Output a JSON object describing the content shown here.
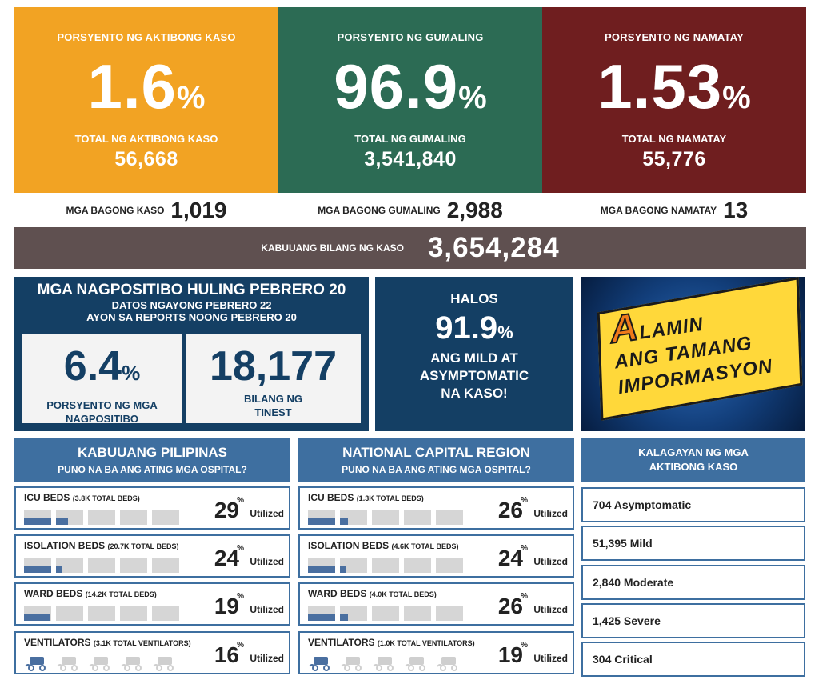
{
  "colors": {
    "orange": "#f2a323",
    "green": "#2c6b54",
    "red": "#6f1e1f",
    "navy": "#143f64",
    "steel": "#3e6fa0",
    "brown": "#5f5050"
  },
  "top": [
    {
      "label": "PORSYENTO NG AKTIBONG KASO",
      "pct": "1.6",
      "pct_sign": "%",
      "total_label": "TOTAL NG AKTIBONG KASO",
      "total": "56,668"
    },
    {
      "label": "PORSYENTO NG GUMALING",
      "pct": "96.9",
      "pct_sign": "%",
      "total_label": "TOTAL NG GUMALING",
      "total": "3,541,840"
    },
    {
      "label": "PORSYENTO NG NAMATAY",
      "pct": "1.53",
      "pct_sign": "%",
      "total_label": "TOTAL NG NAMATAY",
      "total": "55,776"
    }
  ],
  "new": [
    {
      "label": "MGA BAGONG KASO",
      "value": "1,019"
    },
    {
      "label": "MGA BAGONG GUMALING",
      "value": "2,988"
    },
    {
      "label": "MGA BAGONG NAMATAY",
      "value": "13"
    }
  ],
  "total": {
    "label": "KABUUANG BILANG NG KASO",
    "value": "3,654,284"
  },
  "positivity": {
    "title": "MGA NAGPOSITIBO HULING PEBRERO 20",
    "sub1": "DATOS NGAYONG PEBRERO 22",
    "sub2": "AYON SA REPORTS NOONG PEBRERO 20",
    "rate": "6.4",
    "rate_sign": "%",
    "rate_label1": "PORSYENTO NG MGA",
    "rate_label2": "NAGPOSITIBO",
    "tested": "18,177",
    "tested_label1": "BILANG NG",
    "tested_label2": "TINEST"
  },
  "mild": {
    "line1": "HALOS",
    "pct": "91.9",
    "pct_sign": "%",
    "line2": "ANG MILD AT",
    "line3": "ASYMPTOMATIC",
    "line4": "NA KASO!"
  },
  "banner": {
    "big_letter": "A",
    "line1": "LAMIN",
    "line2": "ANG TAMANG",
    "line3": "IMPORMASYON"
  },
  "ph": {
    "title": "KABUUANG PILIPINAS",
    "subtitle": "PUNO NA BA ANG ATING MGA OSPITAL?",
    "rows": [
      {
        "name": "ICU BEDS",
        "total": "(3.8K TOTAL BEDS)",
        "pct": "29",
        "pct_value": 29,
        "sign": "%",
        "util": "Utilized"
      },
      {
        "name": "ISOLATION BEDS",
        "total": "(20.7K TOTAL BEDS)",
        "pct": "24",
        "pct_value": 24,
        "sign": "%",
        "util": "Utilized"
      },
      {
        "name": "WARD BEDS",
        "total": "(14.2K TOTAL BEDS)",
        "pct": "19",
        "pct_value": 19,
        "sign": "%",
        "util": "Utilized"
      },
      {
        "name": "VENTILATORS",
        "total": "(3.1K TOTAL VENTILATORS)",
        "pct": "16",
        "pct_value": 16,
        "sign": "%",
        "util": "Utilized"
      }
    ]
  },
  "ncr": {
    "title": "NATIONAL CAPITAL REGION",
    "subtitle": "PUNO NA BA ANG ATING MGA OSPITAL?",
    "rows": [
      {
        "name": "ICU BEDS",
        "total": "(1.3K TOTAL BEDS)",
        "pct": "26",
        "pct_value": 26,
        "sign": "%",
        "util": "Utilized"
      },
      {
        "name": "ISOLATION BEDS",
        "total": "(4.6K TOTAL BEDS)",
        "pct": "24",
        "pct_value": 24,
        "sign": "%",
        "util": "Utilized"
      },
      {
        "name": "WARD BEDS",
        "total": "(4.0K TOTAL BEDS)",
        "pct": "26",
        "pct_value": 26,
        "sign": "%",
        "util": "Utilized"
      },
      {
        "name": "VENTILATORS",
        "total": "(1.0K TOTAL VENTILATORS)",
        "pct": "19",
        "pct_value": 19,
        "sign": "%",
        "util": "Utilized"
      }
    ]
  },
  "kalagayan": {
    "title1": "KALAGAYAN NG MGA",
    "title2": "AKTIBONG KASO",
    "items": [
      "704 Asymptomatic",
      "51,395 Mild",
      "2,840 Moderate",
      "1,425 Severe",
      "304 Critical"
    ]
  }
}
